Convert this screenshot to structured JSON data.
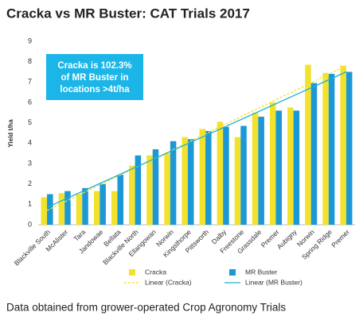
{
  "chart_data": {
    "type": "bar",
    "title": "Cracka vs MR Buster: CAT Trials 2017",
    "y_label": "Yield t/ha",
    "annotation": [
      "Cracka is 102.3%",
      "of MR Buster in",
      "locations >4t/ha"
    ],
    "footnote": "Data obtained from grower-operated Crop Agronomy Trials",
    "categories": [
      "Blackville South",
      "McAlister",
      "Tara",
      "Jandowae",
      "Bellata",
      "Blackville North",
      "Ellangowan",
      "Norwin",
      "Kingsthorpe",
      "Pittsworth",
      "Dalby",
      "Freestone",
      "Grassdale",
      "Premer",
      "Aubigny",
      "Norwin",
      "Spring Ridge",
      "Premer"
    ],
    "series": [
      {
        "name": "Cracka",
        "color": "#f3e22c",
        "values": [
          1.35,
          1.55,
          1.5,
          1.65,
          1.65,
          2.9,
          3.4,
          3.5,
          4.3,
          4.7,
          5.05,
          4.3,
          5.5,
          6.0,
          5.75,
          7.85,
          7.45,
          7.8
        ]
      },
      {
        "name": "MR Buster",
        "color": "#1b98d5",
        "values": [
          1.5,
          1.65,
          1.8,
          2.0,
          2.45,
          3.4,
          3.7,
          4.1,
          4.2,
          4.6,
          4.8,
          4.85,
          5.3,
          5.6,
          5.6,
          6.95,
          7.4,
          7.5
        ]
      }
    ],
    "trendlines": [
      {
        "name": "Linear (Cracka)",
        "color": "#f3e22c",
        "dashed": true,
        "values": [
          0.7,
          7.8
        ]
      },
      {
        "name": "Linear (MR Buster)",
        "color": "#1bb0d8",
        "dashed": false,
        "values": [
          0.85,
          7.5
        ]
      }
    ],
    "ylim": [
      0,
      9
    ],
    "yticks": [
      0,
      1,
      2,
      3,
      4,
      5,
      6,
      7,
      8,
      9
    ],
    "grid": false
  }
}
